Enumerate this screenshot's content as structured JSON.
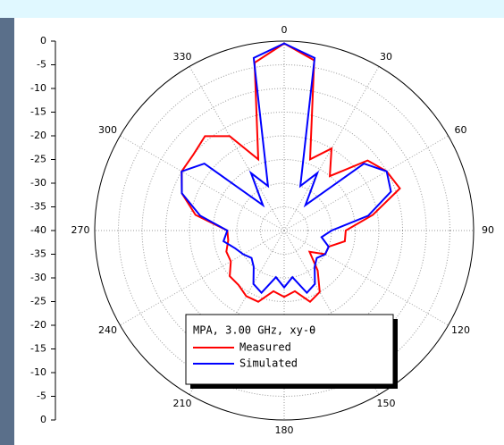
{
  "chart_data": {
    "type": "polar",
    "legend_title": "MPA, 3.00 GHz, xy-θ",
    "theta": [
      0,
      10,
      20,
      30,
      40,
      50,
      60,
      70,
      80,
      90,
      100,
      110,
      120,
      130,
      140,
      150,
      160,
      170,
      180,
      190,
      200,
      210,
      220,
      230,
      240,
      250,
      260,
      270,
      280,
      290,
      300,
      310,
      320,
      330,
      340,
      350
    ],
    "series": [
      {
        "name": "Measured",
        "color": "#ff0000",
        "values": [
          -0.5,
          -3.5,
          -24,
          -20,
          -25,
          -17,
          -15,
          -14,
          -21,
          -27,
          -27,
          -30,
          -30,
          -33,
          -29,
          -25,
          -24,
          -27,
          -26,
          -27,
          -24,
          -24,
          -25,
          -25,
          -27,
          -27,
          -28,
          -28,
          -21,
          -17,
          -15,
          -15,
          -14,
          -17,
          -24,
          -4
        ]
      },
      {
        "name": "Simulated",
        "color": "#0000ff",
        "values": [
          -0.5,
          -3,
          -30,
          -26,
          -33,
          -18,
          -15,
          -16,
          -22,
          -30,
          -32,
          -30,
          -30,
          -31,
          -30,
          -27,
          -26,
          -30,
          -28,
          -30,
          -26,
          -27,
          -30,
          -31,
          -30,
          -29,
          -27,
          -28,
          -22,
          -17,
          -15,
          -18,
          -33,
          -26,
          -30,
          -3
        ]
      }
    ],
    "rlim": [
      -40,
      0
    ],
    "rticks": [
      0,
      -5,
      -10,
      -15,
      -20,
      -25,
      -30,
      -35,
      -40
    ],
    "thetaticks": [
      0,
      30,
      60,
      90,
      120,
      150,
      180,
      210,
      240,
      270,
      300,
      330
    ],
    "grid": true
  }
}
